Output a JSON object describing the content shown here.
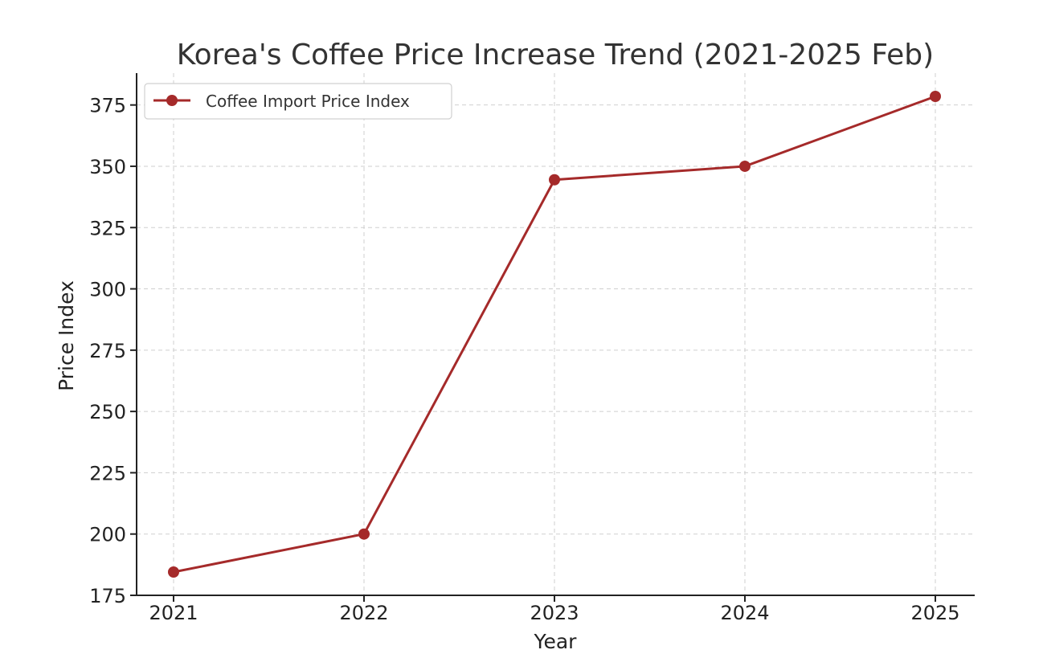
{
  "chart_data": {
    "type": "line",
    "title": "Korea's Coffee Price Increase Trend (2021-2025 Feb)",
    "xlabel": "Year",
    "ylabel": "Price Index",
    "categories": [
      "2021",
      "2022",
      "2023",
      "2024",
      "2025"
    ],
    "y_ticks": [
      "175",
      "200",
      "225",
      "250",
      "275",
      "300",
      "325",
      "350",
      "375"
    ],
    "ylim": [
      175,
      388
    ],
    "grid": true,
    "legend_position": "top-left",
    "series": [
      {
        "name": "Coffee Import Price Index",
        "color": "#a52a2a",
        "marker": "circle",
        "values": [
          184.5,
          200,
          344.5,
          350,
          378.5
        ]
      }
    ]
  }
}
